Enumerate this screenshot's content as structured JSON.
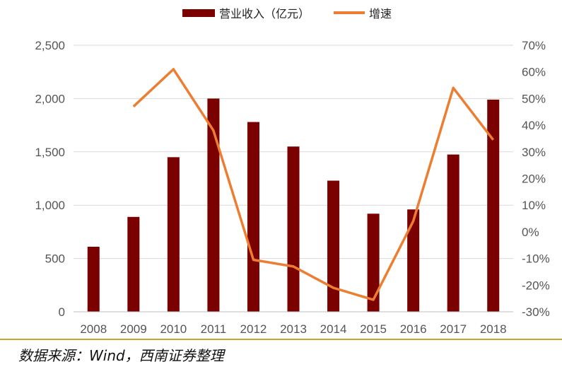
{
  "legend": {
    "bar_label": "营业收入（亿元）",
    "line_label": "增速"
  },
  "source_note": "数据来源：Wind，西南证券整理",
  "colors": {
    "bar": "#7b0000",
    "line": "#ed7d31",
    "grid": "#d9d9d9",
    "divider": "#c9a227",
    "axis_text": "#555555"
  },
  "chart_data": {
    "type": "bar+line",
    "categories": [
      "2008",
      "2009",
      "2010",
      "2011",
      "2012",
      "2013",
      "2014",
      "2015",
      "2016",
      "2017",
      "2018"
    ],
    "series": [
      {
        "name": "营业收入（亿元）",
        "type": "bar",
        "axis": "left",
        "values": [
          610,
          890,
          1450,
          2000,
          1780,
          1550,
          1230,
          920,
          960,
          1475,
          1990
        ]
      },
      {
        "name": "增速",
        "type": "line",
        "axis": "right",
        "values": [
          null,
          47,
          61,
          38,
          -10.5,
          -13,
          -21,
          -25.5,
          4,
          54,
          34.5
        ]
      }
    ],
    "y_left": {
      "min": 0,
      "max": 2500,
      "step": 500,
      "tick_labels": [
        "0",
        "500",
        "1,000",
        "1,500",
        "2,000",
        "2,500"
      ]
    },
    "y_right": {
      "min": -30,
      "max": 70,
      "step": 10,
      "tick_labels": [
        "-30%",
        "-20%",
        "-10%",
        "0%",
        "10%",
        "20%",
        "30%",
        "40%",
        "50%",
        "60%",
        "70%"
      ]
    },
    "grid": true,
    "legend_position": "top"
  }
}
